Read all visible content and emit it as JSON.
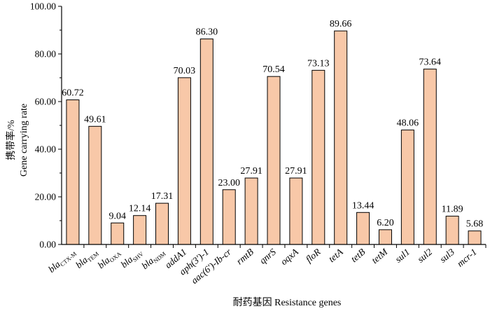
{
  "chart_data": {
    "type": "bar",
    "title": "",
    "xlabel": "耐药基因 Resistance genes",
    "ylabel_cn": "携带率/%",
    "ylabel_en": "Gene carrying rate",
    "ylim": [
      0,
      100
    ],
    "yticks": [
      "0.00",
      "20.00",
      "40.00",
      "60.00",
      "80.00",
      "100.00"
    ],
    "bar_color": "#F8C8A8",
    "categories": [
      {
        "main": "bla",
        "sub": "CTX-M"
      },
      {
        "main": "bla",
        "sub": "TEM"
      },
      {
        "main": "bla",
        "sub": "OXA"
      },
      {
        "main": "bla",
        "sub": "SHV"
      },
      {
        "main": "bla",
        "sub": "NDM"
      },
      {
        "main": "addA1",
        "sub": ""
      },
      {
        "main": "aph(3')-1",
        "sub": ""
      },
      {
        "main": "aac(6')-Ib-cr",
        "sub": ""
      },
      {
        "main": "rmtB",
        "sub": ""
      },
      {
        "main": "qnrS",
        "sub": ""
      },
      {
        "main": "oqxA",
        "sub": ""
      },
      {
        "main": "floR",
        "sub": ""
      },
      {
        "main": "tetA",
        "sub": ""
      },
      {
        "main": "tetB",
        "sub": ""
      },
      {
        "main": "tetM",
        "sub": ""
      },
      {
        "main": "sul1",
        "sub": ""
      },
      {
        "main": "sul2",
        "sub": ""
      },
      {
        "main": "sul3",
        "sub": ""
      },
      {
        "main": "mcr-1",
        "sub": ""
      }
    ],
    "values": [
      60.72,
      49.61,
      9.04,
      12.14,
      17.31,
      70.03,
      86.3,
      23.0,
      27.91,
      70.54,
      27.91,
      73.13,
      89.66,
      13.44,
      6.2,
      48.06,
      73.64,
      11.89,
      5.68
    ],
    "value_labels": [
      "60.72",
      "49.61",
      "9.04",
      "12.14",
      "17.31",
      "70.03",
      "86.30",
      "23.00",
      "27.91",
      "70.54",
      "27.91",
      "73.13",
      "89.66",
      "13.44",
      "6.20",
      "48.06",
      "73.64",
      "11.89",
      "5.68"
    ]
  }
}
